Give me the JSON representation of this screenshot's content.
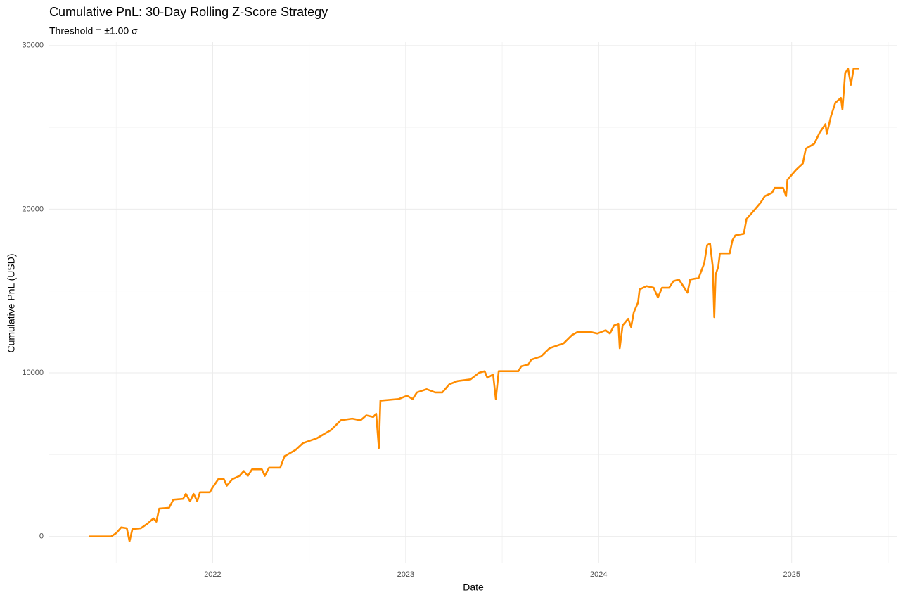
{
  "chart_data": {
    "type": "line",
    "title": "Cumulative PnL: 30-Day Rolling Z-Score Strategy",
    "subtitle": "Threshold = ±1.00 σ",
    "x_label": "Date",
    "y_label": "Cumulative PnL (USD)",
    "x": [
      2021.358,
      2021.474,
      2021.5,
      2021.526,
      2021.555,
      2021.569,
      2021.584,
      2021.628,
      2021.664,
      2021.693,
      2021.708,
      2021.723,
      2021.774,
      2021.796,
      2021.847,
      2021.861,
      2021.883,
      2021.901,
      2021.92,
      2021.934,
      2021.985,
      2022.0,
      2022.029,
      2022.058,
      2022.073,
      2022.102,
      2022.139,
      2022.161,
      2022.182,
      2022.204,
      2022.255,
      2022.27,
      2022.292,
      2022.35,
      2022.372,
      2022.431,
      2022.467,
      2022.54,
      2022.613,
      2022.664,
      2022.723,
      2022.766,
      2022.796,
      2022.832,
      2022.847,
      2022.861,
      2022.869,
      2022.964,
      2023.007,
      2023.036,
      2023.058,
      2023.109,
      2023.153,
      2023.19,
      2023.226,
      2023.27,
      2023.336,
      2023.38,
      2023.409,
      2023.423,
      2023.453,
      2023.467,
      2023.482,
      2023.584,
      2023.599,
      2023.635,
      2023.65,
      2023.701,
      2023.745,
      2023.818,
      2023.861,
      2023.891,
      2023.956,
      2023.993,
      2024.036,
      2024.058,
      2024.08,
      2024.102,
      2024.109,
      2024.124,
      2024.153,
      2024.168,
      2024.182,
      2024.204,
      2024.212,
      2024.248,
      2024.285,
      2024.307,
      2024.328,
      2024.365,
      2024.387,
      2024.416,
      2024.438,
      2024.46,
      2024.474,
      2024.518,
      2024.547,
      2024.562,
      2024.577,
      2024.591,
      2024.599,
      2024.606,
      2024.62,
      2024.628,
      2024.679,
      2024.693,
      2024.708,
      2024.752,
      2024.766,
      2024.803,
      2024.839,
      2024.861,
      2024.898,
      2024.912,
      2024.956,
      2024.971,
      2024.978,
      2025.022,
      2025.058,
      2025.073,
      2025.117,
      2025.146,
      2025.175,
      2025.182,
      2025.204,
      2025.226,
      2025.255,
      2025.263,
      2025.277,
      2025.292,
      2025.307,
      2025.321,
      2025.35
    ],
    "series": [
      {
        "name": "Cumulative PnL",
        "color": "#ff8c00",
        "values": [
          0,
          0,
          200,
          550,
          500,
          -300,
          450,
          500,
          800,
          1100,
          900,
          1700,
          1750,
          2250,
          2300,
          2600,
          2150,
          2600,
          2150,
          2700,
          2700,
          3000,
          3500,
          3500,
          3100,
          3500,
          3700,
          4000,
          3700,
          4100,
          4100,
          3700,
          4200,
          4200,
          4900,
          5300,
          5700,
          6000,
          6500,
          7100,
          7200,
          7100,
          7400,
          7300,
          7500,
          5400,
          8300,
          8400,
          8600,
          8400,
          8800,
          9000,
          8800,
          8800,
          9300,
          9500,
          9600,
          10000,
          10100,
          9700,
          9900,
          8400,
          10100,
          10100,
          10400,
          10500,
          10800,
          11000,
          11500,
          11800,
          12300,
          12500,
          12500,
          12400,
          12600,
          12400,
          12900,
          13000,
          11500,
          12900,
          13300,
          12800,
          13700,
          14300,
          15100,
          15300,
          15200,
          14600,
          15200,
          15200,
          15600,
          15700,
          15300,
          14900,
          15700,
          15800,
          16700,
          17800,
          17900,
          16500,
          13400,
          16000,
          16500,
          17300,
          17300,
          18100,
          18400,
          18500,
          19400,
          19900,
          20400,
          20800,
          21000,
          21300,
          21300,
          20800,
          21800,
          22400,
          22800,
          23700,
          24000,
          24700,
          25200,
          24600,
          25700,
          26500,
          26800,
          26100,
          28300,
          28600,
          27600,
          28600,
          28600
        ]
      }
    ],
    "xlim": [
      2021.153,
      2025.544
    ],
    "xticks": [
      2022,
      2023,
      2024,
      2025
    ],
    "ylim": [
      -1650,
      30250
    ],
    "yticks": [
      0,
      10000,
      20000,
      30000
    ],
    "grid": true
  }
}
